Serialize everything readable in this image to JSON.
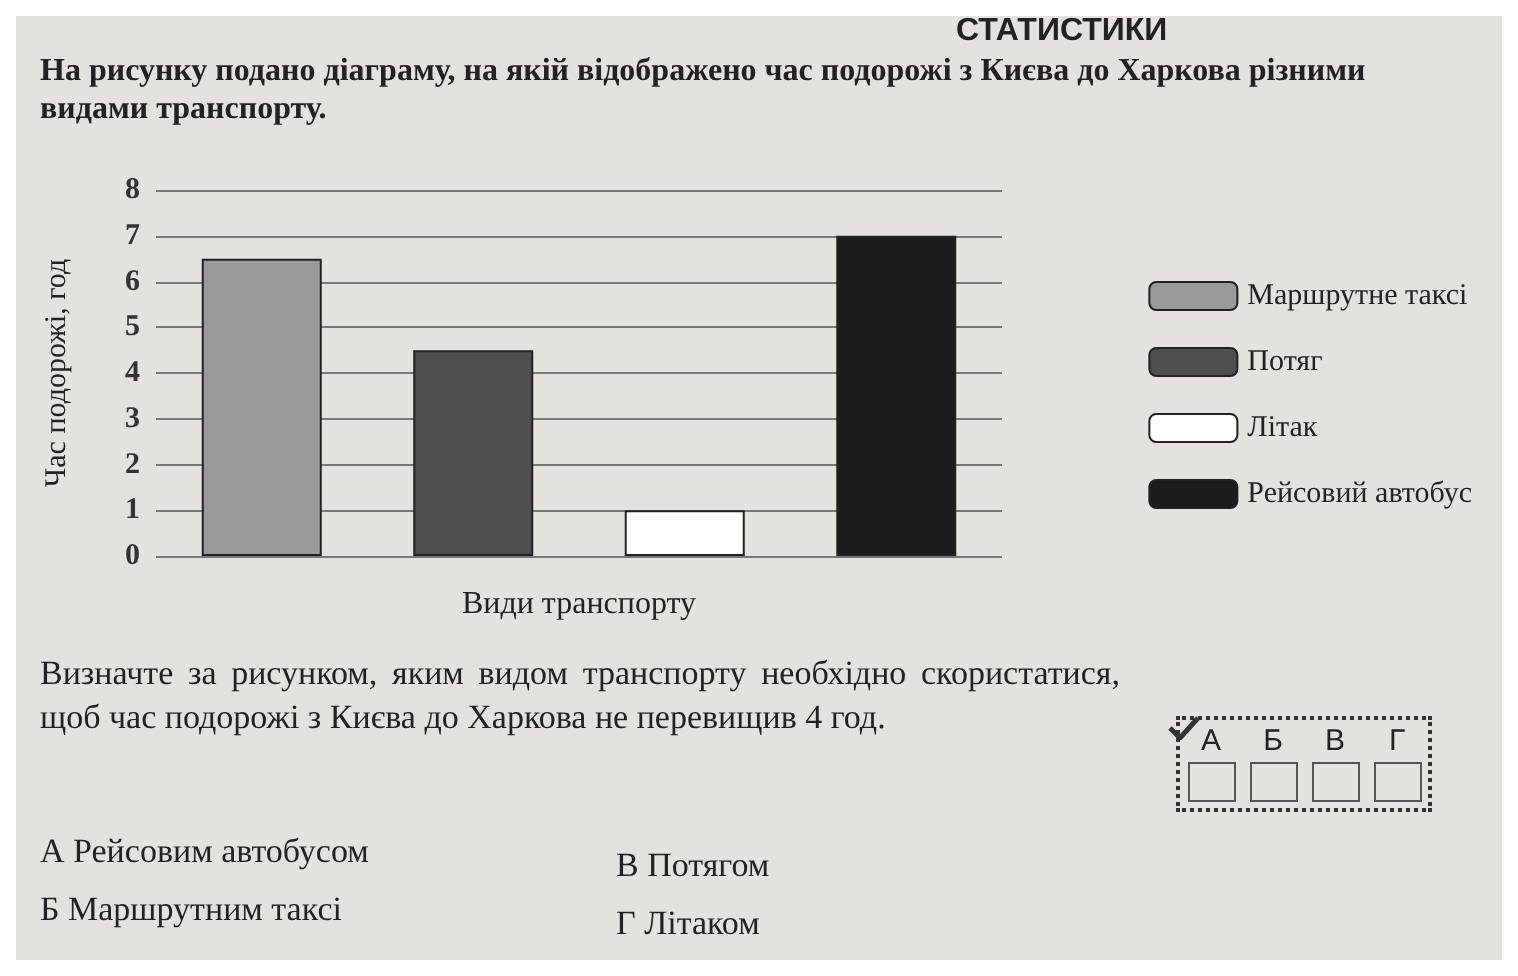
{
  "chart_data": {
    "type": "bar",
    "title": "На рисунку подано діаграму, на якій відображено час подорожі з Києва до Харкова різними видами транспорту.",
    "xlabel": "Види транспорту",
    "ylabel": "Час подорожі, год",
    "categories": [
      null,
      null,
      null,
      null
    ],
    "series": [
      {
        "name": "Маршрутне таксі",
        "color": "#9a9a9a",
        "values": [
          6.5,
          null,
          null,
          null
        ]
      },
      {
        "name": "Потяг",
        "color": "#4e4e4e",
        "values": [
          null,
          4.5,
          null,
          null
        ]
      },
      {
        "name": "Літак",
        "color": "#ffffff",
        "values": [
          null,
          null,
          1,
          null
        ]
      },
      {
        "name": "Рейсовий автобус",
        "color": "#1c1c1c",
        "values": [
          null,
          null,
          null,
          7
        ]
      }
    ],
    "ylim": [
      0,
      8
    ],
    "yticks": [
      0,
      1,
      2,
      3,
      4,
      5,
      6,
      7,
      8
    ],
    "grid": "y",
    "legend": "right",
    "annotations": [
      "СТАТИСТИКИ",
      "Визначте за рисунком, яким видом транспорту необхідно скористатися, щоб час подорожі з Києва до Харкова не перевищив 4 год.",
      "А Рейсовим автобусом",
      "Б Маршрутним таксі",
      "В Потягом",
      "Г Літаком",
      "А",
      "Б",
      "В",
      "Г"
    ]
  }
}
